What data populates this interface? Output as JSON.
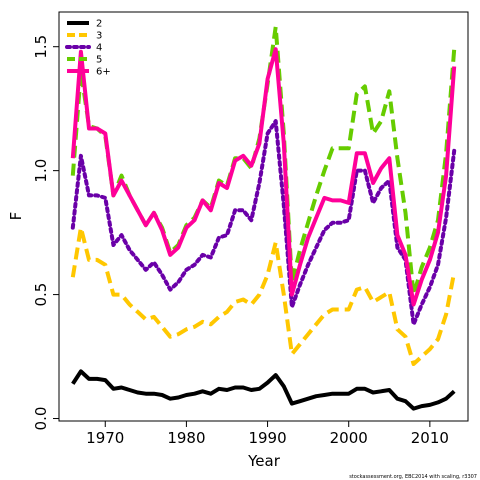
{
  "chart_data": {
    "type": "line",
    "xlabel": "Year",
    "ylabel": "F",
    "xlim": [
      1964.3,
      2014.7
    ],
    "ylim": [
      -0.01,
      1.64
    ],
    "x_ticks": [
      1970,
      1980,
      1990,
      2000,
      2010
    ],
    "y_ticks": [
      0.0,
      0.5,
      1.0,
      1.5
    ],
    "y_tick_labels": [
      "0.0",
      "0.5",
      "1.0",
      "1.5"
    ],
    "legend_position": "top-left",
    "x": [
      1966,
      1967,
      1968,
      1969,
      1970,
      1971,
      1972,
      1973,
      1974,
      1975,
      1976,
      1977,
      1978,
      1979,
      1980,
      1981,
      1982,
      1983,
      1984,
      1985,
      1986,
      1987,
      1988,
      1989,
      1990,
      1991,
      1992,
      1993,
      1994,
      1995,
      1996,
      1997,
      1998,
      1999,
      2000,
      2001,
      2002,
      2003,
      2004,
      2005,
      2006,
      2007,
      2008,
      2009,
      2010,
      2011,
      2012,
      2013
    ],
    "series": [
      {
        "name": "2",
        "color": "#000000",
        "dash": "solid",
        "values": [
          0.14,
          0.19,
          0.16,
          0.16,
          0.155,
          0.12,
          0.125,
          0.115,
          0.105,
          0.1,
          0.1,
          0.095,
          0.08,
          0.085,
          0.095,
          0.1,
          0.11,
          0.1,
          0.12,
          0.115,
          0.125,
          0.125,
          0.115,
          0.12,
          0.145,
          0.175,
          0.13,
          0.06,
          0.07,
          0.08,
          0.09,
          0.095,
          0.1,
          0.1,
          0.1,
          0.12,
          0.12,
          0.105,
          0.11,
          0.115,
          0.08,
          0.07,
          0.04,
          0.05,
          0.055,
          0.065,
          0.08,
          0.11
        ]
      },
      {
        "name": "3",
        "color": "#FFC700",
        "dash": "dashed",
        "values": [
          0.57,
          0.77,
          0.64,
          0.64,
          0.62,
          0.5,
          0.5,
          0.46,
          0.43,
          0.4,
          0.41,
          0.37,
          0.33,
          0.34,
          0.36,
          0.37,
          0.39,
          0.38,
          0.41,
          0.43,
          0.47,
          0.48,
          0.46,
          0.5,
          0.58,
          0.71,
          0.5,
          0.26,
          0.3,
          0.34,
          0.38,
          0.42,
          0.44,
          0.44,
          0.44,
          0.52,
          0.53,
          0.47,
          0.49,
          0.51,
          0.36,
          0.33,
          0.22,
          0.25,
          0.28,
          0.32,
          0.42,
          0.59
        ]
      },
      {
        "name": "4",
        "color": "#6A00A8",
        "dash": "dotted",
        "values": [
          0.77,
          1.06,
          0.9,
          0.9,
          0.89,
          0.7,
          0.74,
          0.68,
          0.64,
          0.6,
          0.63,
          0.58,
          0.52,
          0.55,
          0.6,
          0.62,
          0.66,
          0.65,
          0.73,
          0.74,
          0.84,
          0.84,
          0.8,
          0.95,
          1.15,
          1.2,
          0.86,
          0.45,
          0.54,
          0.62,
          0.69,
          0.76,
          0.79,
          0.79,
          0.8,
          1.0,
          1.0,
          0.87,
          0.93,
          0.96,
          0.69,
          0.64,
          0.38,
          0.46,
          0.53,
          0.62,
          0.81,
          1.08
        ]
      },
      {
        "name": "5",
        "color": "#66CC00",
        "dash": "dashed",
        "values": [
          0.98,
          1.4,
          1.18,
          1.17,
          1.14,
          0.9,
          0.98,
          0.9,
          0.84,
          0.78,
          0.83,
          0.77,
          0.67,
          0.7,
          0.78,
          0.81,
          0.88,
          0.85,
          0.96,
          0.94,
          1.05,
          1.05,
          1.01,
          1.13,
          1.35,
          1.58,
          1.15,
          0.55,
          0.68,
          0.79,
          0.9,
          1.0,
          1.09,
          1.09,
          1.09,
          1.31,
          1.34,
          1.15,
          1.2,
          1.32,
          1.05,
          0.83,
          0.5,
          0.61,
          0.69,
          0.8,
          1.07,
          1.49
        ]
      },
      {
        "name": "6+",
        "color": "#FF0099",
        "dash": "solid",
        "values": [
          1.05,
          1.48,
          1.17,
          1.17,
          1.15,
          0.9,
          0.96,
          0.9,
          0.84,
          0.78,
          0.83,
          0.76,
          0.66,
          0.69,
          0.77,
          0.8,
          0.88,
          0.84,
          0.95,
          0.93,
          1.04,
          1.06,
          1.02,
          1.11,
          1.37,
          1.49,
          1.11,
          0.5,
          0.62,
          0.73,
          0.81,
          0.89,
          0.88,
          0.88,
          0.87,
          1.07,
          1.07,
          0.95,
          1.01,
          1.05,
          0.74,
          0.66,
          0.46,
          0.56,
          0.64,
          0.75,
          0.98,
          1.42
        ]
      }
    ]
  },
  "footer": "stockassessment.org,  EBC2014  with  scaling,  r3307"
}
